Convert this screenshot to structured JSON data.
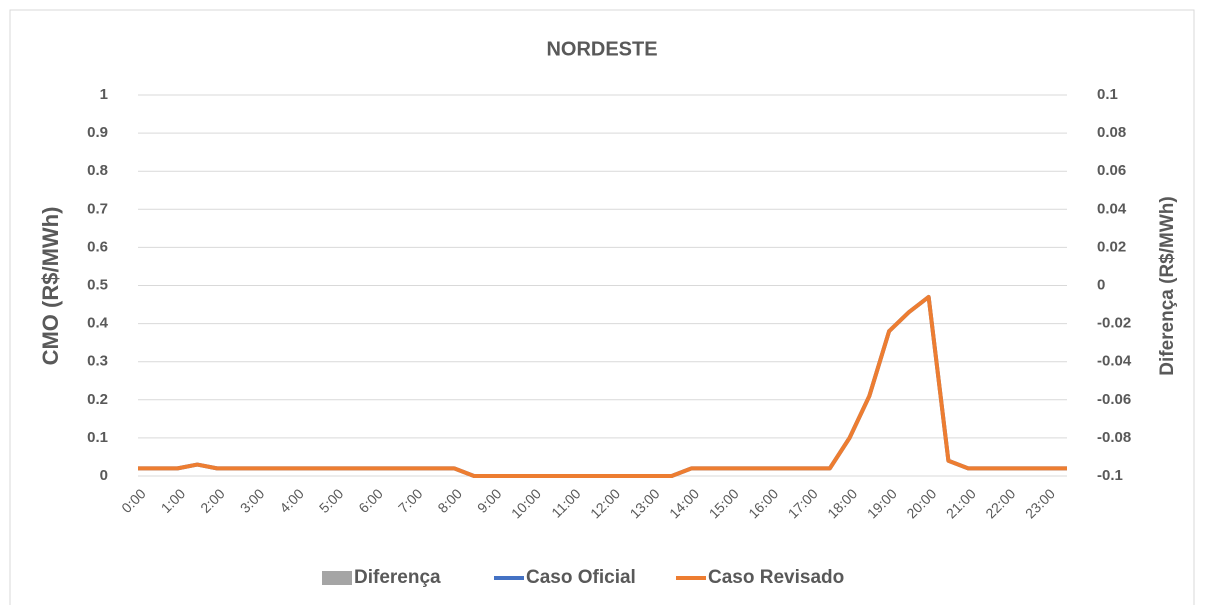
{
  "chart_data": {
    "type": "line",
    "title": "NORDESTE",
    "y_label": "CMO (R$/MWh)",
    "y2_label": "Diferença (R$/MWh)",
    "categories": [
      "0:00",
      null,
      "1:00",
      null,
      "2:00",
      null,
      "3:00",
      null,
      "4:00",
      null,
      "5:00",
      null,
      "6:00",
      null,
      "7:00",
      null,
      "8:00",
      null,
      "9:00",
      null,
      "10:00",
      null,
      "11:00",
      null,
      "12:00",
      null,
      "13:00",
      null,
      "14:00",
      null,
      "15:00",
      null,
      "16:00",
      null,
      "17:00",
      null,
      "18:00",
      null,
      "19:00",
      null,
      "20:00",
      null,
      "21:00",
      null,
      "22:00",
      null,
      "23:00",
      null
    ],
    "series": [
      {
        "name": "Diferença",
        "type": "bar",
        "axis": "y2",
        "color": "#a5a5a5",
        "values": [
          0,
          0,
          0,
          0,
          0,
          0,
          0,
          0,
          0,
          0,
          0,
          0,
          0,
          0,
          0,
          0,
          0,
          0,
          0,
          0,
          0,
          0,
          0,
          0,
          0,
          0,
          0,
          0,
          0,
          0,
          0,
          0,
          0,
          0,
          0,
          0,
          0,
          0,
          0,
          0,
          0,
          0,
          0,
          0,
          0,
          0,
          0,
          0
        ]
      },
      {
        "name": "Caso Oficial",
        "type": "line",
        "color": "#4472c4",
        "values": [
          0.02,
          0.02,
          0.02,
          0.03,
          0.02,
          0.02,
          0.02,
          0.02,
          0.02,
          0.02,
          0.02,
          0.02,
          0.02,
          0.02,
          0.02,
          0.02,
          0.02,
          0,
          0,
          0,
          0,
          0,
          0,
          0,
          0,
          0,
          0,
          0,
          0.02,
          0.02,
          0.02,
          0.02,
          0.02,
          0.02,
          0.02,
          0.02,
          0.1,
          0.21,
          0.38,
          0.43,
          0.47,
          0.04,
          0.02,
          0.02,
          0.02,
          0.02,
          0.02,
          0.02
        ]
      },
      {
        "name": "Caso Revisado",
        "type": "line",
        "color": "#ed7d31",
        "values": [
          0.02,
          0.02,
          0.02,
          0.03,
          0.02,
          0.02,
          0.02,
          0.02,
          0.02,
          0.02,
          0.02,
          0.02,
          0.02,
          0.02,
          0.02,
          0.02,
          0.02,
          0,
          0,
          0,
          0,
          0,
          0,
          0,
          0,
          0,
          0,
          0,
          0.02,
          0.02,
          0.02,
          0.02,
          0.02,
          0.02,
          0.02,
          0.02,
          0.1,
          0.21,
          0.38,
          0.43,
          0.47,
          0.04,
          0.02,
          0.02,
          0.02,
          0.02,
          0.02,
          0.02
        ]
      }
    ],
    "ylim": [
      0,
      1
    ],
    "yticks": [
      0,
      0.1,
      0.2,
      0.3,
      0.4,
      0.5,
      0.6,
      0.7,
      0.8,
      0.9,
      1
    ],
    "y2lim": [
      -0.1,
      0.1
    ],
    "y2ticks": [
      -0.1,
      -0.08,
      -0.06,
      -0.04,
      -0.02,
      0,
      0.02,
      0.04,
      0.06,
      0.08,
      0.1
    ],
    "grid": true,
    "legend": "bottom"
  }
}
